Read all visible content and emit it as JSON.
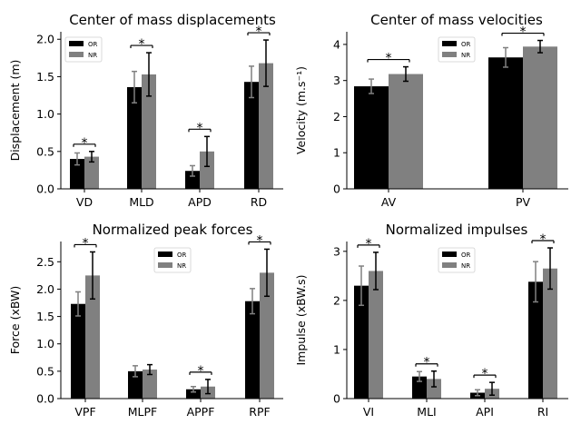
{
  "colors": {
    "OR": "#000000",
    "NR": "#808080",
    "err_OR": "#808080",
    "err_NR": "#000000"
  },
  "chart_data": [
    {
      "type": "bar",
      "title": "Center of mass displacements",
      "ylabel": "Displacement (m)",
      "categories": [
        "VD",
        "MLD",
        "APD",
        "RD"
      ],
      "ylim": [
        0,
        2.1
      ],
      "yticks": [
        "0.0",
        "0.5",
        "1.0",
        "1.5",
        "2.0"
      ],
      "legend": {
        "position": "top-left",
        "entries": [
          "OR",
          "NR"
        ]
      },
      "series": [
        {
          "name": "OR",
          "values": [
            0.4,
            1.36,
            0.24,
            1.43
          ],
          "errors": [
            0.08,
            0.21,
            0.07,
            0.21
          ]
        },
        {
          "name": "NR",
          "values": [
            0.43,
            1.53,
            0.5,
            1.68
          ],
          "errors": [
            0.07,
            0.29,
            0.2,
            0.31
          ]
        }
      ],
      "significance": [
        true,
        true,
        true,
        true
      ]
    },
    {
      "type": "bar",
      "title": "Center of mass velocities",
      "ylabel": "Velocity (m.s⁻¹)",
      "categories": [
        "AV",
        "PV"
      ],
      "ylim": [
        0,
        4.35
      ],
      "yticks": [
        "0",
        "1",
        "2",
        "3",
        "4"
      ],
      "legend": {
        "position": "top-center",
        "entries": [
          "OR",
          "NR"
        ]
      },
      "series": [
        {
          "name": "OR",
          "values": [
            2.84,
            3.64
          ],
          "errors": [
            0.2,
            0.27
          ]
        },
        {
          "name": "NR",
          "values": [
            3.18,
            3.94
          ],
          "errors": [
            0.2,
            0.17
          ]
        }
      ],
      "significance": [
        true,
        true
      ]
    },
    {
      "type": "bar",
      "title": "Normalized peak forces",
      "ylabel": "Force (xBW)",
      "categories": [
        "VPF",
        "MLPF",
        "APPF",
        "RPF"
      ],
      "ylim": [
        0,
        2.87
      ],
      "yticks": [
        "0.0",
        "0.5",
        "1.0",
        "1.5",
        "2.0",
        "2.5"
      ],
      "legend": {
        "position": "top-center",
        "entries": [
          "OR",
          "NR"
        ]
      },
      "series": [
        {
          "name": "OR",
          "values": [
            1.73,
            0.5,
            0.17,
            1.78
          ],
          "errors": [
            0.22,
            0.1,
            0.05,
            0.23
          ]
        },
        {
          "name": "NR",
          "values": [
            2.25,
            0.53,
            0.22,
            2.3
          ],
          "errors": [
            0.43,
            0.09,
            0.13,
            0.43
          ]
        }
      ],
      "significance": [
        true,
        false,
        true,
        true
      ]
    },
    {
      "type": "bar",
      "title": "Normalized impulses",
      "ylabel": "Impulse (xBW.s)",
      "categories": [
        "VI",
        "MLI",
        "API",
        "RI"
      ],
      "ylim": [
        0,
        3.2
      ],
      "yticks": [
        "0",
        "1",
        "2",
        "3"
      ],
      "legend": {
        "position": "top-center",
        "entries": [
          "OR",
          "NR"
        ]
      },
      "series": [
        {
          "name": "OR",
          "values": [
            2.3,
            0.45,
            0.12,
            2.38
          ],
          "errors": [
            0.4,
            0.1,
            0.06,
            0.41
          ]
        },
        {
          "name": "NR",
          "values": [
            2.6,
            0.4,
            0.2,
            2.65
          ],
          "errors": [
            0.38,
            0.16,
            0.13,
            0.42
          ]
        }
      ],
      "significance": [
        true,
        true,
        true,
        true
      ]
    }
  ],
  "sig_marker": "*"
}
